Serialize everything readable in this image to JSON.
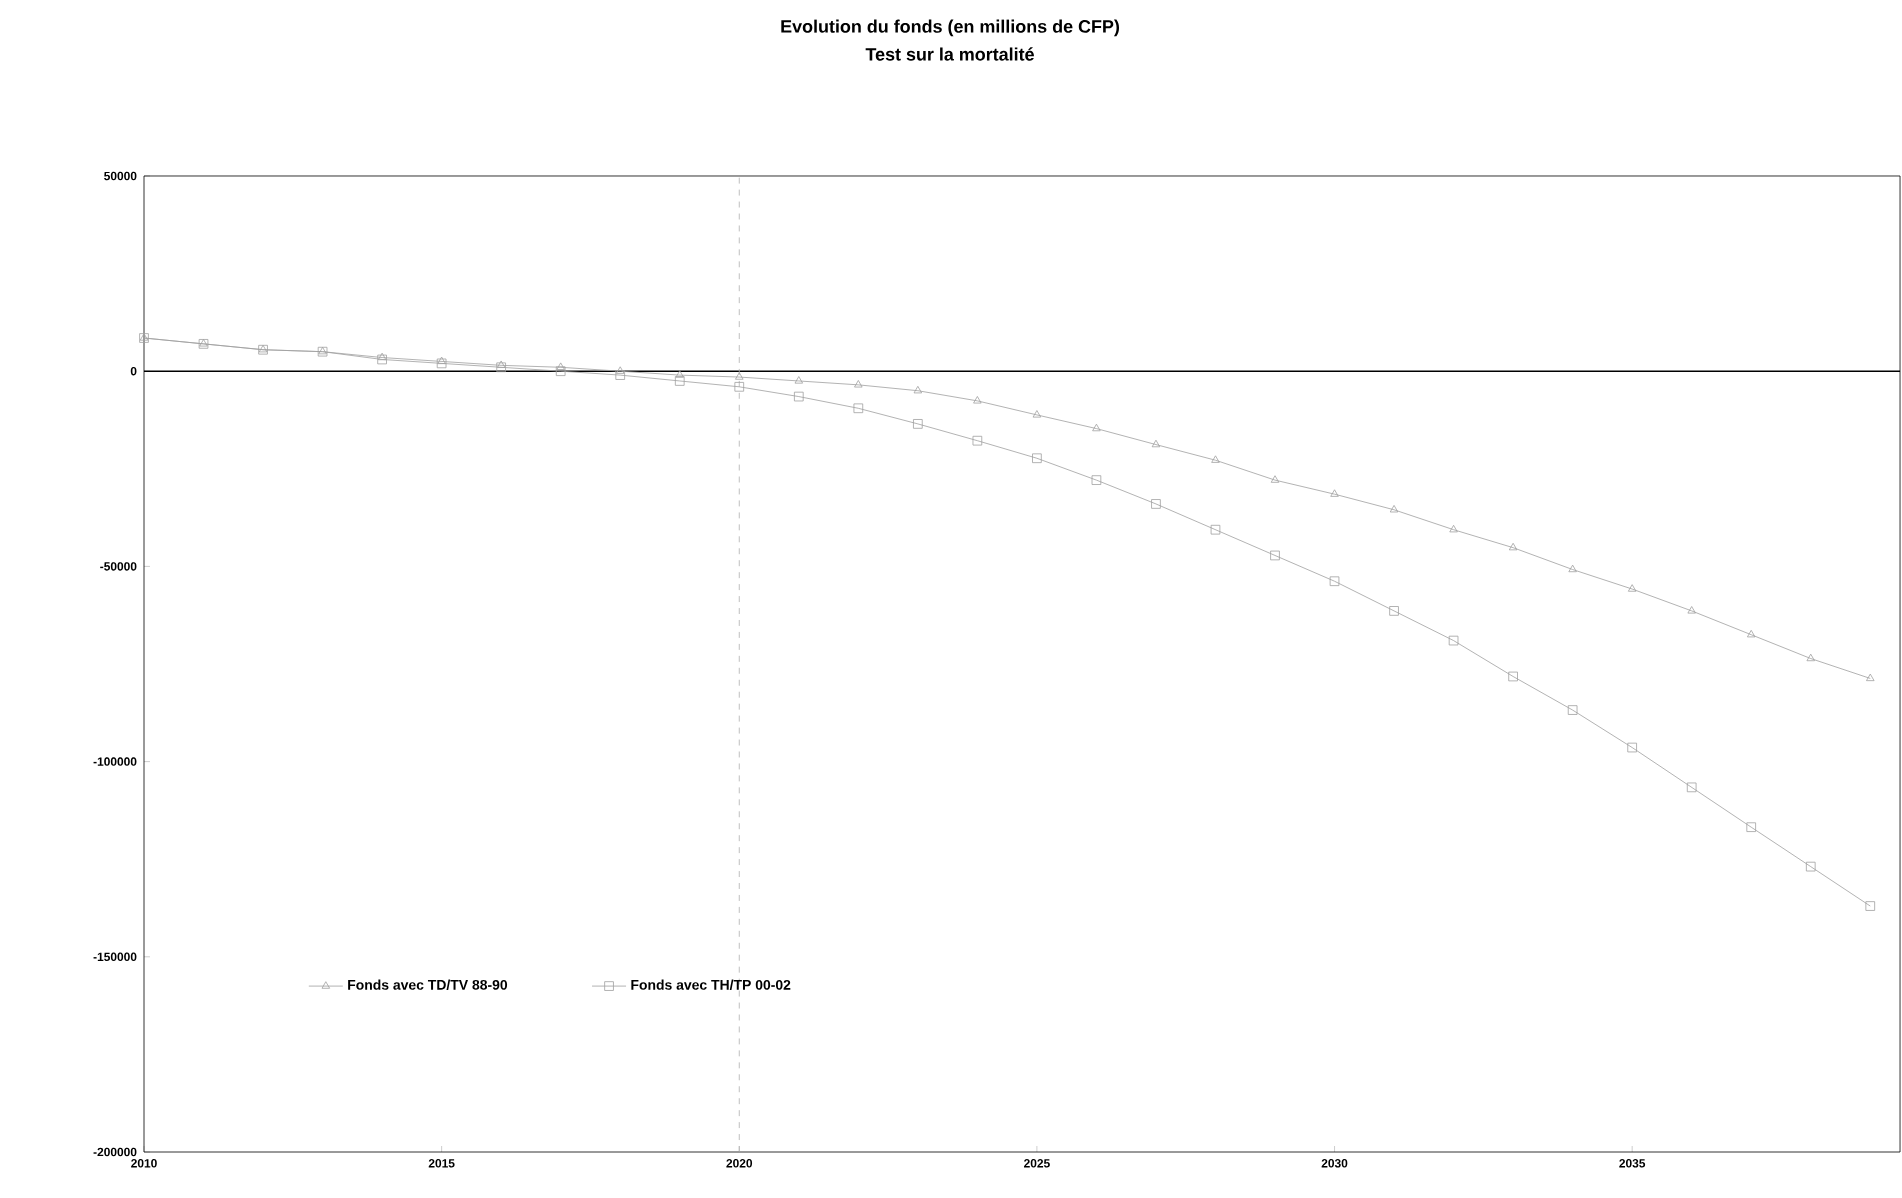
{
  "chart_data": {
    "type": "line",
    "title": "Evolution du fonds (en millions de CFP)",
    "subtitle": "Test sur la mortalité",
    "x": [
      2010,
      2011,
      2012,
      2013,
      2014,
      2015,
      2016,
      2017,
      2018,
      2019,
      2020,
      2021,
      2022,
      2023,
      2024,
      2025,
      2026,
      2027,
      2028,
      2029,
      2030,
      2031,
      2032,
      2033,
      2034,
      2035,
      2036,
      2037,
      2038,
      2039
    ],
    "series": [
      {
        "name": "Fonds avec TD/TV 88-90",
        "color": "#a0a0a0",
        "marker": "triangle",
        "values": [
          8500,
          7000,
          5500,
          5000,
          3500,
          2500,
          1500,
          1000,
          0,
          -1000,
          -1500,
          -2500,
          -3500,
          -5000,
          -7600,
          -11200,
          -14700,
          -18800,
          -22800,
          -27900,
          -31500,
          -35500,
          -40600,
          -45200,
          -50800,
          -55800,
          -61400,
          -67500,
          -73600,
          -78700
        ]
      },
      {
        "name": "Fonds avec TH/TP 00-02",
        "color": "#a0a0a0",
        "marker": "square",
        "values": [
          8500,
          7000,
          5500,
          5000,
          3000,
          2000,
          1000,
          0,
          -1000,
          -2500,
          -4000,
          -6500,
          -9500,
          -13500,
          -17800,
          -22300,
          -27900,
          -34000,
          -40600,
          -47200,
          -53800,
          -61400,
          -69000,
          -78200,
          -86800,
          -96400,
          -106600,
          -116800,
          -126900,
          -137000
        ]
      }
    ],
    "xlim": [
      2010,
      2039.5
    ],
    "xticks": [
      2010,
      2015,
      2020,
      2025,
      2030,
      2035
    ],
    "ylim": [
      -200000,
      50000
    ],
    "yticks": [
      -200000,
      -150000,
      -100000,
      -50000,
      0,
      50000
    ],
    "ref_lines": [
      {
        "axis": "y",
        "value": 0,
        "color": "#000000",
        "line_style": "solid"
      },
      {
        "axis": "x",
        "value": 2020,
        "color": "#b0b0b0",
        "line_style": "dashed"
      }
    ],
    "legend": "bottom left",
    "grid": false,
    "line_style": "solid"
  }
}
